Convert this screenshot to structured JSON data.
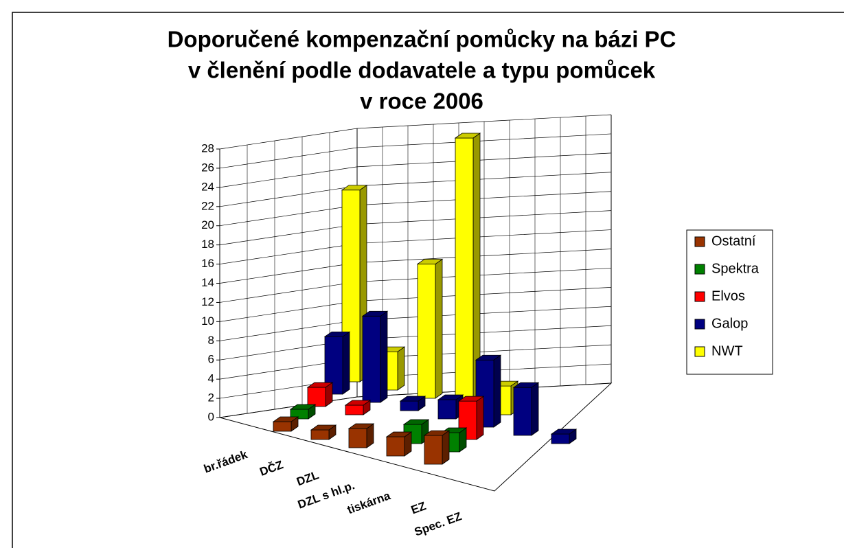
{
  "chart_data": {
    "type": "bar3d",
    "title": [
      "Doporučené kompenzační pomůcky na bázi PC",
      "v členění podle dodavatele a typu pomůcek",
      "v roce 2006"
    ],
    "categories": [
      "br.řádek",
      "DČZ",
      "DZL",
      "DZL s hl.p.",
      "tiskárna",
      "EZ",
      "Spec. EZ"
    ],
    "series": [
      {
        "name": "Ostatní",
        "color": "#993300",
        "values": [
          1,
          1,
          2,
          2,
          3,
          null,
          null
        ]
      },
      {
        "name": "Spektra",
        "color": "#008000",
        "values": [
          1,
          null,
          null,
          2,
          2,
          null,
          null
        ]
      },
      {
        "name": "Elvos",
        "color": "#ff0000",
        "values": [
          2,
          1,
          null,
          null,
          4,
          null,
          null
        ]
      },
      {
        "name": "Galop",
        "color": "#000080",
        "values": [
          6,
          9,
          1,
          2,
          7,
          5,
          1
        ]
      },
      {
        "name": "NWT",
        "color": "#ffff00",
        "values": [
          20,
          4,
          14,
          28,
          3,
          null,
          null
        ]
      }
    ],
    "ylim": [
      0,
      28
    ],
    "yticks": [
      0,
      2,
      4,
      6,
      8,
      10,
      12,
      14,
      16,
      18,
      20,
      22,
      24,
      26,
      28
    ],
    "grid": true,
    "legend": "right"
  }
}
